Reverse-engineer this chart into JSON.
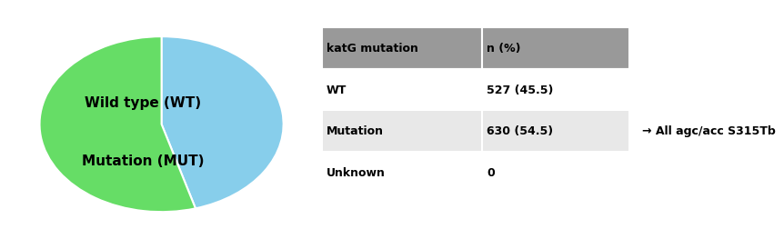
{
  "pie_values": [
    45.5,
    54.5
  ],
  "pie_colors": [
    "#87CEEB",
    "#66DD66"
  ],
  "pie_labels": [
    "Wild type (WT)",
    "Mutation (MUT)"
  ],
  "pie_label_fontsize": 11,
  "pie_startangle": 90,
  "table_header": [
    "katG mutation",
    "n (%)"
  ],
  "table_rows": [
    [
      "WT",
      "527 (45.5)"
    ],
    [
      "Mutation",
      "630 (54.5)"
    ],
    [
      "Unknown",
      "0"
    ]
  ],
  "table_header_color": "#999999",
  "table_row_colors": [
    "#ffffff",
    "#e8e8e8",
    "#ffffff"
  ],
  "arrow_text": "→ All agc/acc S315Tb",
  "arrow_row": 1,
  "background_color": "#ffffff"
}
